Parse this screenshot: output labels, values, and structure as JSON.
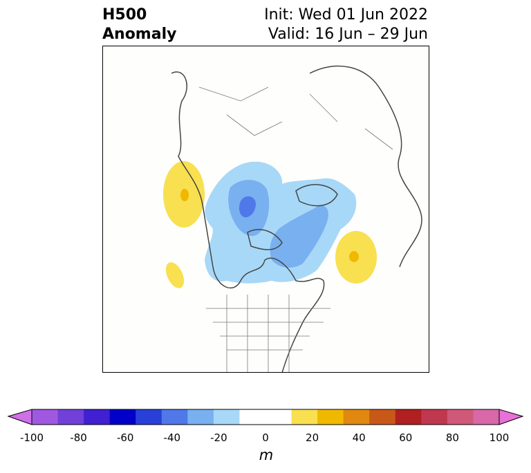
{
  "header": {
    "variable": "H500",
    "field": "Anomaly",
    "init": "Init: Wed 01 Jun 2022",
    "valid": "Valid: 16 Jun – 29 Jun"
  },
  "colorbar": {
    "unit": "m",
    "ticks": [
      "-100",
      "-80",
      "-60",
      "-40",
      "-20",
      "0",
      "20",
      "40",
      "60",
      "80",
      "100"
    ],
    "colors": [
      "#d070e8",
      "#a058e0",
      "#7040d8",
      "#4020d0",
      "#0000c8",
      "#2840d8",
      "#5078e8",
      "#78b0f0",
      "#a8d8f8",
      "#ffffff",
      "#ffffff",
      "#f8e050",
      "#f0b800",
      "#e08810",
      "#c85818",
      "#b02020",
      "#c03850",
      "#d05878",
      "#d868a8",
      "#e870d8"
    ]
  },
  "map": {
    "projection": "north-polar-stereographic",
    "region": "North America / Arctic",
    "anomaly_colors": {
      "positive_light": "#f8e050",
      "positive_dark": "#f0b800",
      "negative_light": "#a8d8f8",
      "negative_mid": "#78b0f0",
      "negative_dark": "#5078e8"
    }
  }
}
